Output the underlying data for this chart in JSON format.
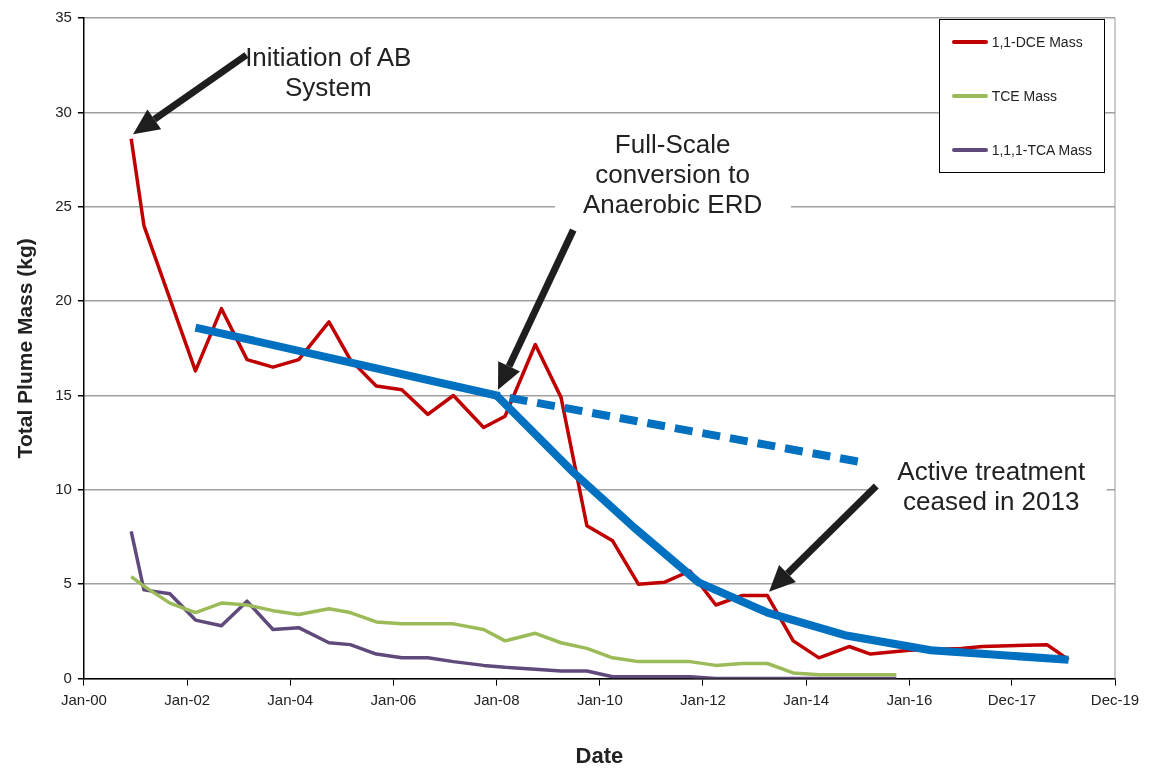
{
  "chart_data": {
    "type": "line",
    "xlabel": "Date",
    "ylabel": "Total Plume Mass (kg)",
    "xlim": [
      "2000-01-01",
      "2019-12-27"
    ],
    "xticks": [
      {
        "value": "2000-01-01",
        "label": "Jan-00"
      },
      {
        "value": "2002-01-01",
        "label": "Jan-02"
      },
      {
        "value": "2004-01-01",
        "label": "Jan-04"
      },
      {
        "value": "2006-01-01",
        "label": "Jan-06"
      },
      {
        "value": "2008-01-01",
        "label": "Jan-08"
      },
      {
        "value": "2010-01-01",
        "label": "Jan-10"
      },
      {
        "value": "2012-01-01",
        "label": "Jan-12"
      },
      {
        "value": "2014-01-01",
        "label": "Jan-14"
      },
      {
        "value": "2016-01-01",
        "label": "Jan-16"
      },
      {
        "value": "2017-12-27",
        "label": "Dec-17"
      },
      {
        "value": "2019-12-27",
        "label": "Dec-19"
      }
    ],
    "ylim": [
      0,
      35
    ],
    "yticks": [
      0,
      5,
      10,
      15,
      20,
      25,
      30,
      35
    ],
    "grid": "y",
    "legend": "top right",
    "marker": "none",
    "x": [
      "2000-12",
      "2001-03",
      "2001-09",
      "2002-03",
      "2002-09",
      "2003-03",
      "2003-09",
      "2004-03",
      "2004-10",
      "2005-03",
      "2005-09",
      "2006-03",
      "2006-09",
      "2007-03",
      "2007-10",
      "2008-03",
      "2008-10",
      "2009-04",
      "2009-10",
      "2010-04",
      "2010-10",
      "2011-04",
      "2011-10",
      "2012-04",
      "2012-10",
      "2013-04",
      "2013-10",
      "2014-04",
      "2014-11",
      "2015-04",
      "2015-10"
    ],
    "series": [
      {
        "name": "1,1-DCE Mass",
        "color": "#c00000",
        "x": [
          "2000-12",
          "2001-03",
          "2002-03",
          "2002-09",
          "2003-03",
          "2003-09",
          "2004-03",
          "2004-10",
          "2005-03",
          "2005-09",
          "2006-03",
          "2006-09",
          "2007-03",
          "2007-10",
          "2008-03",
          "2008-10",
          "2009-04",
          "2009-10",
          "2010-04",
          "2010-10",
          "2011-04",
          "2011-10",
          "2012-04",
          "2012-10",
          "2013-04",
          "2013-10",
          "2014-04",
          "2014-11",
          "2015-04",
          "2016-01",
          "2017-01",
          "2017-06",
          "2018-09",
          "2019-02"
        ],
        "values": [
          28.6,
          24.0,
          16.3,
          19.6,
          16.9,
          16.5,
          16.9,
          18.9,
          16.9,
          15.5,
          15.3,
          14.0,
          15.0,
          13.3,
          13.9,
          17.7,
          14.9,
          8.1,
          7.3,
          5.0,
          5.1,
          5.7,
          3.9,
          4.4,
          4.4,
          2.0,
          1.1,
          1.7,
          1.3,
          1.5,
          1.6,
          1.7,
          1.8,
          1.0
        ]
      },
      {
        "name": "TCE Mass",
        "color": "#9bbb59",
        "values": [
          5.4,
          4.9,
          4.0,
          3.5,
          4.0,
          3.9,
          3.6,
          3.4,
          3.7,
          3.5,
          3.0,
          2.9,
          2.9,
          2.9,
          2.6,
          2.0,
          2.4,
          1.9,
          1.6,
          1.1,
          0.9,
          0.9,
          0.9,
          0.7,
          0.8,
          0.8,
          0.3,
          0.2,
          0.2,
          0.2,
          0.2
        ]
      },
      {
        "name": "1,1,1-TCA Mass",
        "color": "#604a7b",
        "values": [
          7.8,
          4.7,
          4.5,
          3.1,
          2.8,
          4.1,
          2.6,
          2.7,
          1.9,
          1.8,
          1.3,
          1.1,
          1.1,
          0.9,
          0.7,
          0.6,
          0.5,
          0.4,
          0.4,
          0.1,
          0.1,
          0.1,
          0.1,
          0.0,
          0.0,
          0.0,
          0.0,
          0.0,
          0.0,
          0.0,
          0.0
        ]
      },
      {
        "type": "line",
        "color": "#0070c0",
        "x": [
          "2002-03",
          "2008-01"
        ],
        "values": [
          18.6,
          15.0
        ]
      },
      {
        "type": "line",
        "color": "#0070c0",
        "line_style": "dashed",
        "x": [
          "2008-01",
          "2015-01"
        ],
        "values": [
          15.0,
          11.5
        ]
      },
      {
        "type": "line",
        "color": "#0070c0",
        "x": [
          "2008-01",
          "2009-07",
          "2010-09",
          "2011-12",
          "2013-04",
          "2014-10",
          "2016-06",
          "2019-02"
        ],
        "values": [
          15.0,
          10.9,
          8.0,
          5.1,
          3.5,
          2.3,
          1.5,
          1.0
        ]
      }
    ],
    "annotations": [
      "Initiation of AB System",
      "Full-Scale conversion to Anaerobic ERD",
      "Active treatment ceased in 2013"
    ]
  }
}
